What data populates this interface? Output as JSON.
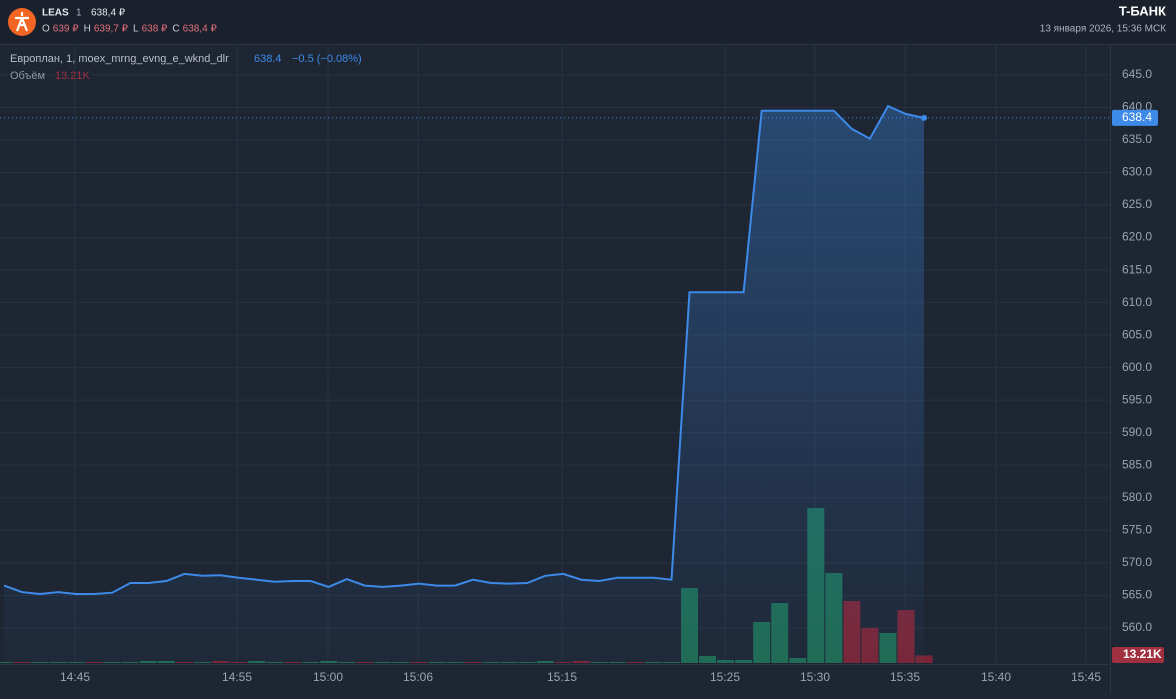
{
  "header": {
    "ticker": "LEAS",
    "interval": "1",
    "price": "638,4 ₽",
    "ohlc": [
      {
        "label": "O",
        "value": "639 ₽"
      },
      {
        "label": "H",
        "value": "639,7 ₽"
      },
      {
        "label": "L",
        "value": "638 ₽"
      },
      {
        "label": "C",
        "value": "638,4 ₽"
      }
    ],
    "brand": "T-БАНК",
    "datetime": "13 января 2026, 15:36 МСК"
  },
  "chart_data": {
    "type": "line",
    "legend": {
      "instrument": "Европлан, 1, moex_mrng_evng_e_wknd_dlr",
      "change": "−0.5 (−0.08%)",
      "volume_label": "Объём"
    },
    "x_labels": [
      "14:45",
      "14:55",
      "15:00",
      "15:06",
      "15:15",
      "15:25",
      "15:30",
      "15:35",
      "15:40",
      "15:45"
    ],
    "series": [
      {
        "name": "Европлан",
        "color": "#3d8ae8",
        "values": [
          566.5,
          565.5,
          565.2,
          565.5,
          565.2,
          565.2,
          565.4,
          566.9,
          566.9,
          567.2,
          568.3,
          568.0,
          568.1,
          567.7,
          567.4,
          567.1,
          567.2,
          567.2,
          566.3,
          567.5,
          566.5,
          566.3,
          566.5,
          566.8,
          566.5,
          566.5,
          567.4,
          566.9,
          566.8,
          566.9,
          568.0,
          568.3,
          567.4,
          567.2,
          567.7,
          567.7,
          567.7,
          567.4,
          611.6,
          611.6,
          611.6,
          611.6,
          639.5,
          639.5,
          639.5,
          639.5,
          639.5,
          636.7,
          635.2,
          640.2,
          639.0,
          638.4
        ]
      },
      {
        "name": "Объём",
        "axis": "volume",
        "values": [
          1800,
          1800,
          1800,
          1800,
          1800,
          1800,
          1800,
          1800,
          3500,
          3500,
          1800,
          1800,
          3500,
          1800,
          3500,
          1800,
          1800,
          1800,
          3500,
          1800,
          1800,
          1800,
          1800,
          1800,
          1800,
          1800,
          1800,
          1800,
          1800,
          1800,
          3500,
          1800,
          3500,
          1800,
          1800,
          1800,
          1800,
          1800,
          131600,
          12300,
          5300,
          5300,
          72000,
          105300,
          8800,
          272000,
          158000,
          108800,
          61400,
          52700,
          93000,
          13210
        ],
        "value_labels": [
          null,
          null,
          null,
          null,
          null,
          null,
          null,
          null,
          null,
          null,
          null,
          null,
          null,
          null,
          null,
          null,
          null,
          null,
          null,
          null,
          null,
          null,
          null,
          null,
          null,
          null,
          null,
          null,
          null,
          null,
          null,
          null,
          null,
          null,
          null,
          null,
          null,
          null,
          null,
          null,
          null,
          null,
          null,
          null,
          null,
          null,
          null,
          null,
          null,
          null,
          null,
          "13.21K"
        ],
        "colors": [
          "#1f6b52",
          "#7a2535",
          "#1f6b52",
          "#1f6b52",
          "#1f6b52",
          "#7a2535",
          "#1f6b52",
          "#1f6b52",
          "#1f6b52",
          "#1f6b52",
          "#7a2535",
          "#1f6b52",
          "#7a2535",
          "#7a2535",
          "#1f6b52",
          "#1f6b52",
          "#7a2535",
          "#1f6b52",
          "#1f6b52",
          "#1f6b52",
          "#7a2535",
          "#1f6b52",
          "#1f6b52",
          "#7a2535",
          "#1f6b52",
          "#1f6b52",
          "#7a2535",
          "#1f6b52",
          "#1f6b52",
          "#1f6b52",
          "#1f6b52",
          "#7a2535",
          "#7a2535",
          "#1f6b52",
          "#1f6b52",
          "#7a2535",
          "#1f6b52",
          "#1f6b52",
          "#1f6b52",
          "#1f6b52",
          "#1f6b52",
          "#1f6b52",
          "#1f6b52",
          "#1f6b52",
          "#1f6b52",
          "#1f6b52",
          "#1f6b52",
          "#7a2535",
          "#7a2535",
          "#1f6b52",
          "#7a2535",
          "#7a2535"
        ]
      }
    ],
    "ylim": [
      554.6,
      649.6
    ],
    "yticks": [
      {
        "value": 560,
        "label": "560.0"
      },
      {
        "value": 565,
        "label": "565.0"
      },
      {
        "value": 570,
        "label": "570.0"
      },
      {
        "value": 575,
        "label": "575.0"
      },
      {
        "value": 580,
        "label": "580.0"
      },
      {
        "value": 585,
        "label": "585.0"
      },
      {
        "value": 590,
        "label": "590.0"
      },
      {
        "value": 595,
        "label": "595.0"
      },
      {
        "value": 600,
        "label": "600.0"
      },
      {
        "value": 605,
        "label": "605.0"
      },
      {
        "value": 610,
        "label": "610.0"
      },
      {
        "value": 615,
        "label": "615.0"
      },
      {
        "value": 620,
        "label": "620.0"
      },
      {
        "value": 625,
        "label": "625.0"
      },
      {
        "value": 630,
        "label": "630.0"
      },
      {
        "value": 635,
        "label": "635.0"
      },
      {
        "value": 640,
        "label": "640.0"
      },
      {
        "value": 645,
        "label": "645.0"
      }
    ],
    "volume_ylim": [
      0,
      330000
    ],
    "grid": true
  }
}
